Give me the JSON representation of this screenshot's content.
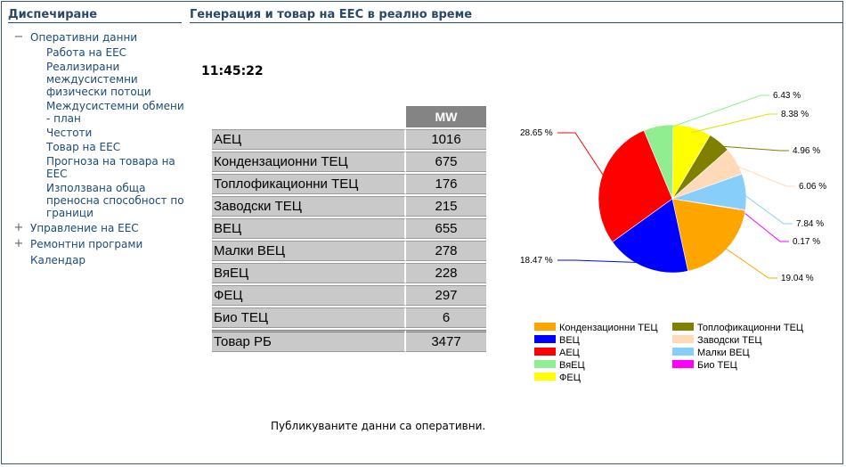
{
  "sidebar": {
    "title": "Диспечиране",
    "nodes": [
      {
        "toggle": "−",
        "label": "Оперативни данни",
        "children": [
          "Работа на ЕЕС",
          "Реализирани междусистемни физически потоци",
          "Междусистемни обмени - план",
          "Честоти",
          "Товар на ЕЕС",
          "Прогноза на товара на ЕЕС",
          "Използвана обща преносна способност по граници"
        ]
      },
      {
        "toggle": "+",
        "label": "Управление на ЕЕС"
      },
      {
        "toggle": "+",
        "label": "Ремонтни програми"
      },
      {
        "toggle": "",
        "label": "Календар"
      }
    ]
  },
  "main": {
    "title": "Генерация и товар на ЕЕС в реално време",
    "time": "11:45:22",
    "table": {
      "header": "MW",
      "rows": [
        {
          "name": "АЕЦ",
          "value": "1016"
        },
        {
          "name": "Кондензационни ТЕЦ",
          "value": "675"
        },
        {
          "name": "Топлофикационни ТЕЦ",
          "value": "176"
        },
        {
          "name": "Заводски ТЕЦ",
          "value": "215"
        },
        {
          "name": "ВЕЦ",
          "value": "655"
        },
        {
          "name": "Малки ВЕЦ",
          "value": "278"
        },
        {
          "name": "ВяЕЦ",
          "value": "228"
        },
        {
          "name": "ФЕЦ",
          "value": "297"
        },
        {
          "name": "Био ТЕЦ",
          "value": "6"
        }
      ],
      "total": {
        "name": "Товар РБ",
        "value": "3477"
      }
    },
    "footer": "Публикуваните данни са оперативни."
  },
  "chart_data": {
    "type": "pie",
    "slices": [
      {
        "name": "ФЕЦ",
        "value": 8.38,
        "label": "8.38 %",
        "color": "#ffff00"
      },
      {
        "name": "Топлофикационни ТЕЦ",
        "value": 4.96,
        "label": "4.96 %",
        "color": "#808000"
      },
      {
        "name": "Заводски ТЕЦ",
        "value": 6.06,
        "label": "6.06 %",
        "color": "#ffdab9"
      },
      {
        "name": "Малки ВЕЦ",
        "value": 7.84,
        "label": "7.84 %",
        "color": "#87cefa"
      },
      {
        "name": "Био ТЕЦ",
        "value": 0.17,
        "label": "0.17 %",
        "color": "#ff00ff"
      },
      {
        "name": "Кондензационни ТЕЦ",
        "value": 19.04,
        "label": "19.04 %",
        "color": "#ffa500"
      },
      {
        "name": "ВЕЦ",
        "value": 18.47,
        "label": "18.47 %",
        "color": "#0000ff"
      },
      {
        "name": "АЕЦ",
        "value": 28.65,
        "label": "28.65 %",
        "color": "#ff0000"
      },
      {
        "name": "ВяЕЦ",
        "value": 6.43,
        "label": "6.43 %",
        "color": "#90ee90"
      }
    ],
    "legend": [
      {
        "name": "Кондензационни ТЕЦ",
        "color": "#ffa500"
      },
      {
        "name": "Топлофикационни ТЕЦ",
        "color": "#808000"
      },
      {
        "name": "ВЕЦ",
        "color": "#0000ff"
      },
      {
        "name": "Заводски ТЕЦ",
        "color": "#ffdab9"
      },
      {
        "name": "АЕЦ",
        "color": "#ff0000"
      },
      {
        "name": "Малки ВЕЦ",
        "color": "#87cefa"
      },
      {
        "name": "ВяЕЦ",
        "color": "#90ee90"
      },
      {
        "name": "Био ТЕЦ",
        "color": "#ff00ff"
      },
      {
        "name": "ФЕЦ",
        "color": "#ffff00"
      }
    ],
    "legend_position": "bottom"
  }
}
